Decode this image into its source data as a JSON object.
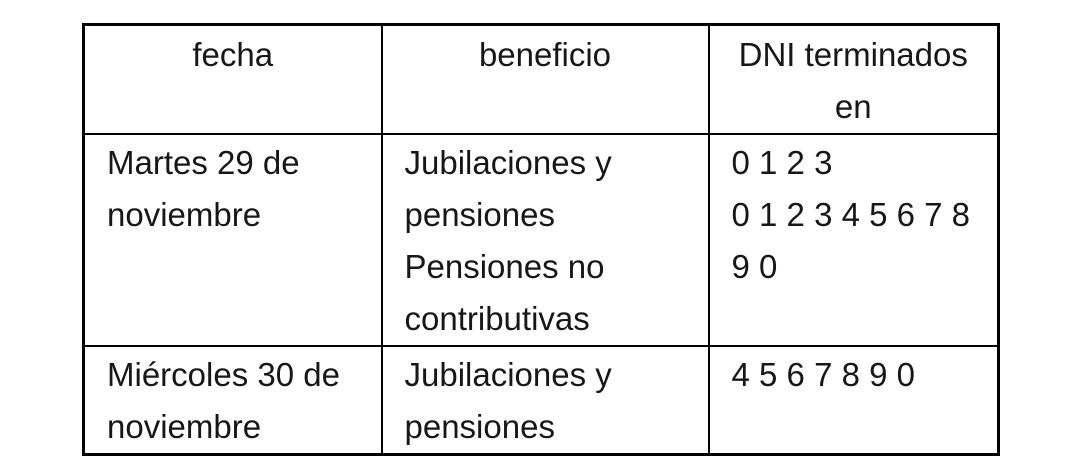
{
  "table": {
    "border_color": "#000000",
    "text_color": "#171717",
    "columns": [
      {
        "id": "fecha",
        "header_lines": [
          "fecha"
        ]
      },
      {
        "id": "beneficio",
        "header_lines": [
          "beneficio"
        ]
      },
      {
        "id": "dni",
        "header_lines": [
          "DNI terminados",
          "en"
        ]
      }
    ],
    "headers_full": [
      "fecha",
      "beneficio",
      "DNI terminados en"
    ],
    "rows": [
      {
        "fecha_full": "Martes 29 de noviembre",
        "beneficio_full": "Jubilaciones y pensiones; Pensiones no contributivas",
        "dni_full": "0 1 2 3; 0 1 2 3 4 5 6 7 8 9 0",
        "fecha_lines": [
          "Martes 29 de",
          "noviembre"
        ],
        "beneficio_lines": [
          "Jubilaciones y",
          "pensiones",
          "Pensiones no",
          "contributivas"
        ],
        "dni_lines": [
          "0 1 2 3",
          "0 1 2 3 4 5 6 7 8",
          "9 0"
        ]
      },
      {
        "fecha_full": "Miércoles 30 de noviembre",
        "beneficio_full": "Jubilaciones y pensiones",
        "dni_full": "4 5 6 7 8 9 0",
        "fecha_lines": [
          "Miércoles 30 de",
          "noviembre"
        ],
        "beneficio_lines": [
          "Jubilaciones y",
          "pensiones"
        ],
        "dni_lines": [
          "4 5 6 7 8 9 0"
        ]
      }
    ]
  }
}
